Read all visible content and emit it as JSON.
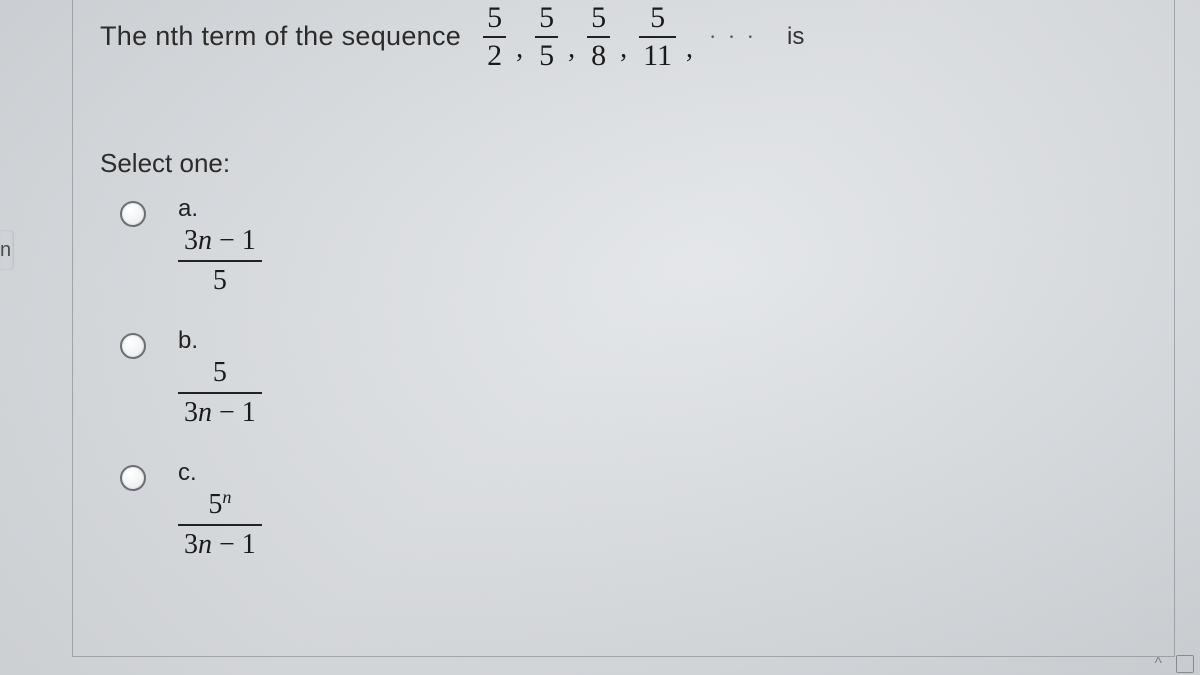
{
  "colors": {
    "page_bg_from": "#d8dce0",
    "page_bg_to": "#d5d9dd",
    "text": "#2c2c2c",
    "math_text": "#1a1a1a",
    "rule": "#222222",
    "frame_border": "#787d82",
    "radio_border": "#6b6f73"
  },
  "typography": {
    "body_family": "Segoe UI, Arial, sans-serif",
    "math_family": "Cambria Math, STIX, Times New Roman, serif",
    "stem_fontsize_pt": 20,
    "option_fontsize_pt": 21,
    "select_fontsize_pt": 19
  },
  "question": {
    "lead_text": "The  nth  term of the sequence",
    "trailing_text": "is",
    "ellipsis": "· · ·",
    "sequence": [
      {
        "num": "5",
        "den": "2"
      },
      {
        "num": "5",
        "den": "5"
      },
      {
        "num": "5",
        "den": "8"
      },
      {
        "num": "5",
        "den": "11"
      }
    ]
  },
  "select_one_label": "Select one:",
  "options": [
    {
      "letter": "a.",
      "numerator": "3n − 1",
      "denominator": "5"
    },
    {
      "letter": "b.",
      "numerator": "5",
      "denominator": "3n − 1"
    },
    {
      "letter": "c.",
      "numerator": "5ⁿ",
      "denominator": "3n − 1"
    }
  ],
  "left_tab_glyph": "n",
  "tray": {
    "caret": "^",
    "has_icon_box": true
  }
}
